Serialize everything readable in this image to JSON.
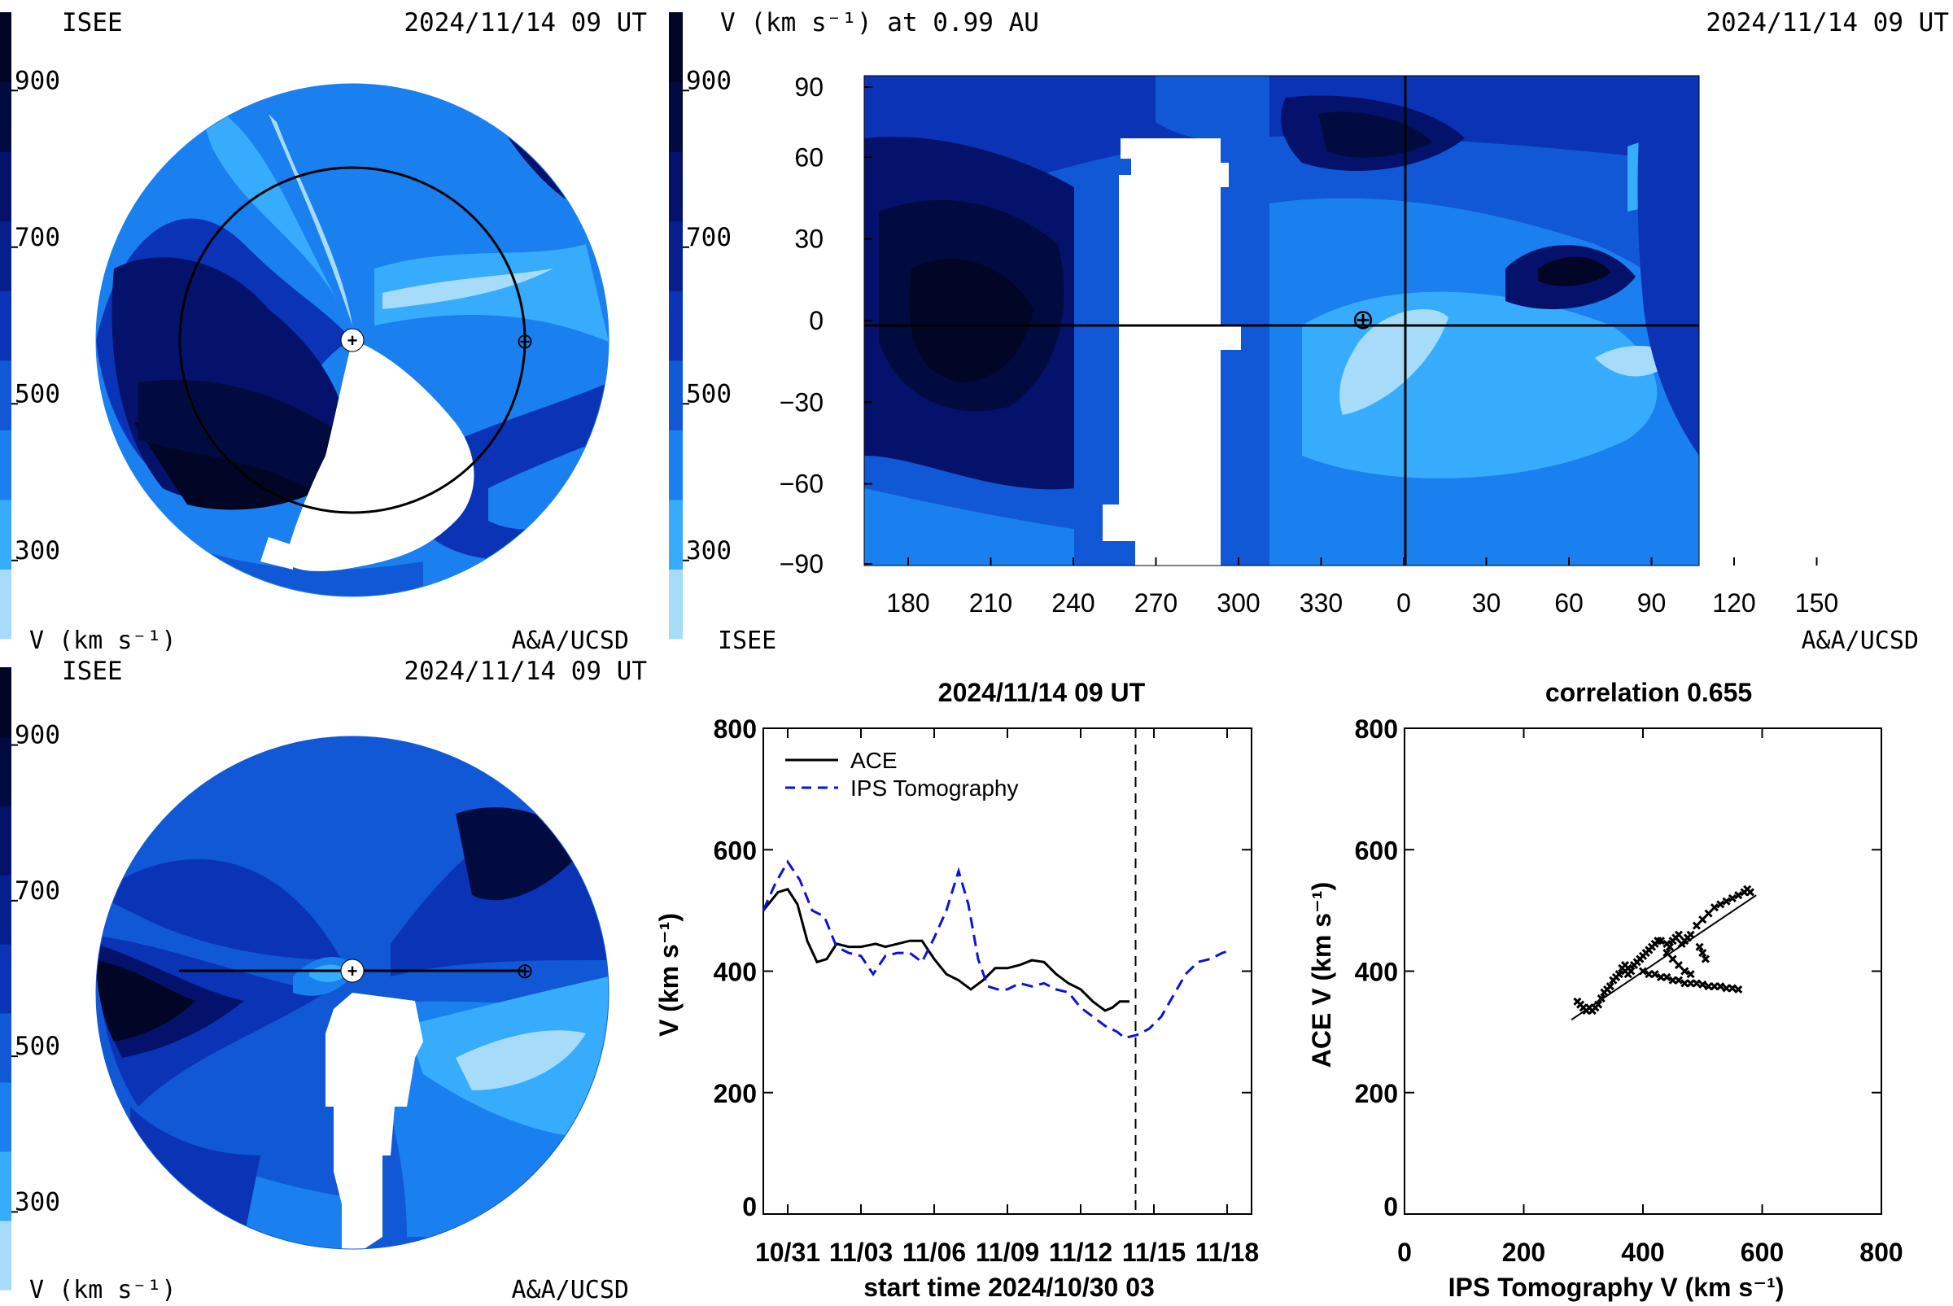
{
  "colors": {
    "scale": [
      "#a6dcfa",
      "#37acfd",
      "#1a80f0",
      "#1158d6",
      "#0a33b5",
      "#071f8c",
      "#05126b",
      "#020b40",
      "#010526"
    ],
    "white": "#ffffff",
    "ace_line": "#000000",
    "ips_line": "#0a14d0"
  },
  "colorbar": {
    "ticks": [
      "900",
      "700",
      "500",
      "300"
    ],
    "tick_values": [
      900,
      700,
      500,
      300
    ],
    "range": [
      200,
      1000
    ]
  },
  "panel_tl": {
    "left_label": "ISEE",
    "date": "2024/11/14 09 UT",
    "bottom_left": "V (km s⁻¹)",
    "bottom_right": "A&A/UCSD",
    "earth_symbol": "⊕",
    "sun_symbol": "+"
  },
  "panel_tr": {
    "title_left": "V (km s⁻¹) at 0.99 AU",
    "date": "2024/11/14 09 UT",
    "bottom_left": "ISEE",
    "bottom_right": "A&A/UCSD",
    "earth_symbol": "⊕"
  },
  "panel_bl": {
    "left_label": "ISEE",
    "date": "2024/11/14 09 UT",
    "bottom_left": "V (km s⁻¹)",
    "bottom_right": "A&A/UCSD",
    "earth_symbol": "⊕",
    "sun_symbol": "+"
  },
  "chart_data": [
    {
      "type": "heatmap",
      "title": "V (km s⁻¹) at 0.99 AU",
      "xlabel": "",
      "ylabel": "",
      "x_ticks": [
        "180",
        "210",
        "240",
        "270",
        "300",
        "330",
        "0",
        "30",
        "60",
        "90",
        "120",
        "150"
      ],
      "y_ticks": [
        "90",
        "60",
        "30",
        "0",
        "−30",
        "−60",
        "−90"
      ],
      "y_range": [
        -90,
        90
      ],
      "earth_longitude": 345,
      "earth_latitude": 3,
      "color_range": [
        200,
        1000
      ]
    },
    {
      "type": "line",
      "title": "2024/11/14 09 UT",
      "xlabel": "start time 2024/10/30 03",
      "ylabel": "V (km s⁻¹)",
      "x_ticks": [
        "10/31",
        "11/03",
        "11/06",
        "11/09",
        "11/12",
        "11/15",
        "11/18"
      ],
      "y_ticks": [
        "800",
        "600",
        "400",
        "200",
        "0"
      ],
      "xlim_days": [
        0,
        20
      ],
      "ylim": [
        0,
        800
      ],
      "current_time_day": 15.25,
      "series": [
        {
          "name": "ACE",
          "style": "solid",
          "points": [
            [
              0,
              500
            ],
            [
              0.6,
              530
            ],
            [
              1.0,
              535
            ],
            [
              1.4,
              510
            ],
            [
              1.8,
              450
            ],
            [
              2.2,
              415
            ],
            [
              2.6,
              420
            ],
            [
              3.0,
              445
            ],
            [
              3.5,
              440
            ],
            [
              4.0,
              440
            ],
            [
              4.6,
              445
            ],
            [
              5.0,
              440
            ],
            [
              5.5,
              445
            ],
            [
              6.0,
              450
            ],
            [
              6.5,
              450
            ],
            [
              7.0,
              420
            ],
            [
              7.5,
              395
            ],
            [
              8.0,
              385
            ],
            [
              8.5,
              370
            ],
            [
              9.0,
              385
            ],
            [
              9.5,
              405
            ],
            [
              10.0,
              405
            ],
            [
              10.5,
              410
            ],
            [
              11.0,
              418
            ],
            [
              11.5,
              415
            ],
            [
              12.0,
              395
            ],
            [
              12.5,
              380
            ],
            [
              13.0,
              370
            ],
            [
              13.5,
              350
            ],
            [
              14.0,
              335
            ],
            [
              14.3,
              340
            ],
            [
              14.6,
              350
            ],
            [
              15.0,
              350
            ]
          ]
        },
        {
          "name": "IPS Tomography",
          "style": "dashed",
          "points": [
            [
              0,
              500
            ],
            [
              0.5,
              545
            ],
            [
              1.0,
              580
            ],
            [
              1.5,
              550
            ],
            [
              2.0,
              500
            ],
            [
              2.5,
              490
            ],
            [
              3.0,
              440
            ],
            [
              3.5,
              430
            ],
            [
              4.0,
              425
            ],
            [
              4.5,
              395
            ],
            [
              5.0,
              425
            ],
            [
              5.5,
              430
            ],
            [
              6.0,
              430
            ],
            [
              6.5,
              415
            ],
            [
              7.0,
              455
            ],
            [
              7.5,
              500
            ],
            [
              8.0,
              565
            ],
            [
              8.4,
              510
            ],
            [
              8.8,
              420
            ],
            [
              9.2,
              375
            ],
            [
              9.6,
              370
            ],
            [
              10.0,
              370
            ],
            [
              10.5,
              380
            ],
            [
              11.0,
              375
            ],
            [
              11.5,
              380
            ],
            [
              12.0,
              370
            ],
            [
              12.5,
              365
            ],
            [
              13.0,
              340
            ],
            [
              13.5,
              325
            ],
            [
              14.0,
              310
            ],
            [
              14.5,
              300
            ],
            [
              14.8,
              290
            ],
            [
              15.3,
              295
            ],
            [
              15.8,
              305
            ],
            [
              16.3,
              325
            ],
            [
              16.8,
              360
            ],
            [
              17.3,
              395
            ],
            [
              17.8,
              415
            ],
            [
              18.3,
              420
            ],
            [
              18.8,
              430
            ],
            [
              19.2,
              435
            ]
          ]
        }
      ],
      "legend": "top-left"
    },
    {
      "type": "scatter",
      "title": "correlation 0.655",
      "xlabel": "IPS Tomography V (km s⁻¹)",
      "ylabel": "ACE V (km s⁻¹)",
      "x_ticks": [
        "0",
        "200",
        "400",
        "600",
        "800"
      ],
      "y_ticks": [
        "800",
        "600",
        "400",
        "200",
        "0"
      ],
      "xlim": [
        0,
        800
      ],
      "ylim": [
        0,
        800
      ],
      "points": [
        [
          290,
          350
        ],
        [
          295,
          345
        ],
        [
          300,
          340
        ],
        [
          305,
          335
        ],
        [
          310,
          340
        ],
        [
          315,
          335
        ],
        [
          320,
          340
        ],
        [
          325,
          345
        ],
        [
          330,
          355
        ],
        [
          335,
          365
        ],
        [
          340,
          370
        ],
        [
          345,
          375
        ],
        [
          350,
          385
        ],
        [
          355,
          390
        ],
        [
          360,
          395
        ],
        [
          365,
          405
        ],
        [
          370,
          410
        ],
        [
          375,
          405
        ],
        [
          370,
          400
        ],
        [
          375,
          395
        ],
        [
          380,
          400
        ],
        [
          385,
          410
        ],
        [
          390,
          415
        ],
        [
          395,
          420
        ],
        [
          400,
          425
        ],
        [
          405,
          430
        ],
        [
          410,
          435
        ],
        [
          415,
          440
        ],
        [
          420,
          445
        ],
        [
          425,
          450
        ],
        [
          430,
          450
        ],
        [
          440,
          445
        ],
        [
          445,
          440
        ],
        [
          450,
          450
        ],
        [
          455,
          455
        ],
        [
          460,
          460
        ],
        [
          465,
          445
        ],
        [
          470,
          450
        ],
        [
          475,
          455
        ],
        [
          480,
          460
        ],
        [
          490,
          475
        ],
        [
          500,
          485
        ],
        [
          510,
          495
        ],
        [
          520,
          505
        ],
        [
          530,
          510
        ],
        [
          540,
          515
        ],
        [
          550,
          520
        ],
        [
          560,
          525
        ],
        [
          570,
          530
        ],
        [
          575,
          535
        ],
        [
          580,
          530
        ],
        [
          400,
          400
        ],
        [
          410,
          395
        ],
        [
          420,
          395
        ],
        [
          430,
          390
        ],
        [
          440,
          390
        ],
        [
          450,
          385
        ],
        [
          460,
          385
        ],
        [
          470,
          380
        ],
        [
          480,
          380
        ],
        [
          490,
          380
        ],
        [
          500,
          378
        ],
        [
          510,
          375
        ],
        [
          520,
          375
        ],
        [
          530,
          375
        ],
        [
          540,
          372
        ],
        [
          550,
          372
        ],
        [
          560,
          370
        ],
        [
          440,
          430
        ],
        [
          450,
          420
        ],
        [
          460,
          410
        ],
        [
          470,
          400
        ],
        [
          480,
          395
        ],
        [
          500,
          430
        ],
        [
          505,
          420
        ],
        [
          495,
          440
        ]
      ],
      "fit_line": [
        [
          280,
          320
        ],
        [
          590,
          525
        ]
      ]
    }
  ]
}
